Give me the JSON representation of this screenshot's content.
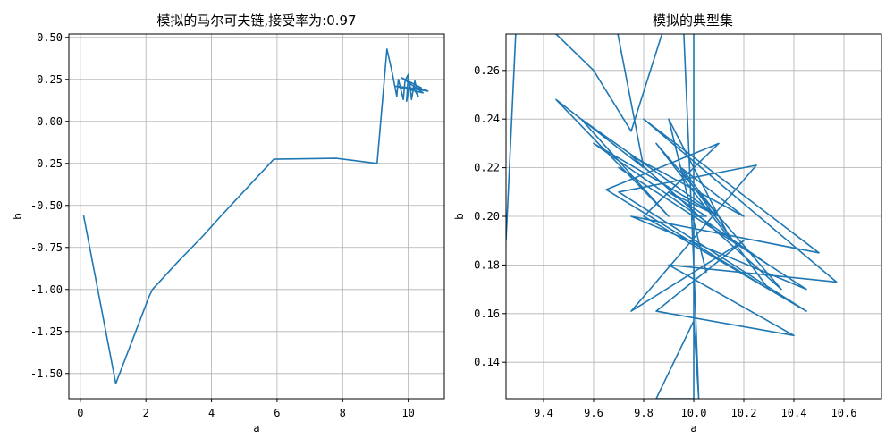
{
  "chart_data": [
    {
      "type": "line",
      "title": "模拟的马尔可夫链,接受率为:0.97",
      "xlabel": "a",
      "ylabel": "b",
      "xlim": [
        -0.35,
        11.1
      ],
      "ylim": [
        -1.65,
        0.52
      ],
      "xticks": [
        0,
        2,
        4,
        6,
        8,
        10
      ],
      "yticks": [
        0.5,
        0.25,
        0.0,
        -0.25,
        -0.5,
        -0.75,
        -1.0,
        -1.25,
        -1.5
      ],
      "grid": true,
      "color": "#1f77b4",
      "points": [
        [
          0.1,
          -0.56
        ],
        [
          1.08,
          -1.56
        ],
        [
          2.1,
          -1.04
        ],
        [
          2.2,
          -1.0
        ],
        [
          3.0,
          -0.83
        ],
        [
          3.7,
          -0.69
        ],
        [
          4.3,
          -0.56
        ],
        [
          5.9,
          -0.225
        ],
        [
          7.8,
          -0.22
        ],
        [
          9.05,
          -0.25
        ],
        [
          9.35,
          0.43
        ],
        [
          9.5,
          0.3
        ],
        [
          9.65,
          0.15
        ],
        [
          9.7,
          0.25
        ],
        [
          9.85,
          0.13
        ],
        [
          9.9,
          0.24
        ],
        [
          10.0,
          0.28
        ],
        [
          9.95,
          0.12
        ],
        [
          10.05,
          0.22
        ],
        [
          10.1,
          0.13
        ],
        [
          10.2,
          0.24
        ],
        [
          10.3,
          0.15
        ],
        [
          10.15,
          0.2
        ],
        [
          10.4,
          0.2
        ],
        [
          9.8,
          0.26
        ],
        [
          10.45,
          0.17
        ],
        [
          9.6,
          0.21
        ],
        [
          10.5,
          0.19
        ],
        [
          10.6,
          0.18
        ],
        [
          10.0,
          0.2
        ]
      ]
    },
    {
      "type": "line",
      "title": "模拟的典型集",
      "xlabel": "a",
      "ylabel": "b",
      "xlim": [
        9.25,
        10.75
      ],
      "ylim": [
        0.125,
        0.275
      ],
      "xticks": [
        9.4,
        9.6,
        9.8,
        10.0,
        10.2,
        10.4,
        10.6
      ],
      "yticks": [
        0.26,
        0.24,
        0.22,
        0.2,
        0.18,
        0.16,
        0.14
      ],
      "grid": true,
      "color": "#1f77b4",
      "points": [
        [
          9.25,
          0.19
        ],
        [
          9.3,
          0.3
        ],
        [
          9.45,
          0.275
        ],
        [
          9.6,
          0.26
        ],
        [
          9.75,
          0.235
        ],
        [
          9.95,
          0.3
        ],
        [
          10.0,
          0.18
        ],
        [
          10.02,
          0.125
        ],
        [
          10.0,
          0.157
        ],
        [
          9.85,
          0.125
        ],
        [
          10.0,
          0.125
        ],
        [
          10.0,
          0.3
        ],
        [
          9.65,
          0.3
        ],
        [
          9.8,
          0.22
        ],
        [
          9.45,
          0.248
        ],
        [
          9.9,
          0.2
        ],
        [
          9.55,
          0.24
        ],
        [
          10.1,
          0.2
        ],
        [
          9.6,
          0.23
        ],
        [
          10.3,
          0.18
        ],
        [
          9.7,
          0.22
        ],
        [
          10.45,
          0.17
        ],
        [
          9.75,
          0.2
        ],
        [
          10.5,
          0.185
        ],
        [
          9.8,
          0.24
        ],
        [
          10.57,
          0.173
        ],
        [
          9.9,
          0.18
        ],
        [
          10.4,
          0.151
        ],
        [
          9.85,
          0.161
        ],
        [
          10.2,
          0.19
        ],
        [
          9.75,
          0.161
        ],
        [
          10.25,
          0.221
        ],
        [
          9.7,
          0.21
        ],
        [
          10.45,
          0.161
        ],
        [
          9.8,
          0.2
        ],
        [
          10.1,
          0.23
        ],
        [
          9.65,
          0.211
        ],
        [
          10.3,
          0.17
        ],
        [
          9.95,
          0.219
        ],
        [
          10.05,
          0.177
        ],
        [
          9.9,
          0.24
        ],
        [
          10.15,
          0.19
        ],
        [
          9.85,
          0.23
        ],
        [
          10.35,
          0.17
        ],
        [
          9.75,
          0.225
        ],
        [
          10.2,
          0.2
        ],
        [
          9.95,
          0.22
        ],
        [
          10.1,
          0.2
        ],
        [
          9.9,
          0.21
        ],
        [
          10.05,
          0.2
        ],
        [
          10.0,
          0.2
        ]
      ]
    }
  ]
}
